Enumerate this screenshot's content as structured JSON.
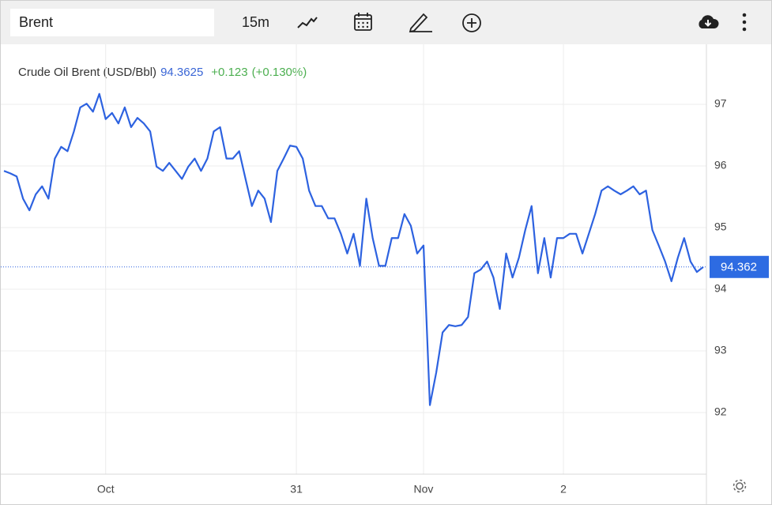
{
  "toolbar": {
    "symbol": "Brent",
    "interval": "15m"
  },
  "chart_data": {
    "type": "line",
    "title": "Crude Oil Brent (USD/Bbl)",
    "last_price": "94.3625",
    "change": "+0.123",
    "change_percent": "(+0.130%)",
    "categories": [
      null,
      null,
      null,
      null,
      null,
      null,
      null,
      null,
      null,
      null,
      null,
      null,
      null,
      null,
      null,
      null,
      "Oct",
      null,
      null,
      null,
      null,
      null,
      null,
      null,
      null,
      null,
      null,
      null,
      null,
      null,
      null,
      null,
      null,
      null,
      null,
      null,
      null,
      null,
      null,
      null,
      null,
      null,
      null,
      null,
      null,
      null,
      "31",
      null,
      null,
      null,
      null,
      null,
      null,
      null,
      null,
      null,
      null,
      null,
      null,
      null,
      null,
      null,
      null,
      null,
      null,
      null,
      "Nov",
      null,
      null,
      null,
      null,
      null,
      null,
      null,
      null,
      null,
      null,
      null,
      null,
      null,
      null,
      null,
      null,
      null,
      null,
      null,
      null,
      null,
      "2",
      null,
      null,
      null,
      null,
      null,
      null,
      null,
      null,
      null,
      null,
      null,
      null,
      null,
      null,
      null,
      null,
      null,
      null,
      null,
      null,
      null,
      null
    ],
    "series": [
      {
        "name": "Crude Oil Brent",
        "color": "#2d62e0",
        "values": [
          95.92,
          95.88,
          95.83,
          95.47,
          95.28,
          95.54,
          95.67,
          95.47,
          96.12,
          96.31,
          96.24,
          96.56,
          96.95,
          97.01,
          96.88,
          97.17,
          96.76,
          96.86,
          96.69,
          96.95,
          96.63,
          96.78,
          96.69,
          96.56,
          95.99,
          95.92,
          96.05,
          95.92,
          95.79,
          95.99,
          96.12,
          95.92,
          96.12,
          96.56,
          96.63,
          96.12,
          96.12,
          96.24,
          95.79,
          95.35,
          95.6,
          95.47,
          95.09,
          95.92,
          96.12,
          96.33,
          96.31,
          96.12,
          95.6,
          95.35,
          95.35,
          95.15,
          95.15,
          94.9,
          94.58,
          94.9,
          94.38,
          95.47,
          94.83,
          94.38,
          94.38,
          94.83,
          94.83,
          95.22,
          95.03,
          94.58,
          94.71,
          92.12,
          92.65,
          93.3,
          93.42,
          93.4,
          93.42,
          93.55,
          94.26,
          94.32,
          94.45,
          94.19,
          93.68,
          94.58,
          94.19,
          94.51,
          94.96,
          95.35,
          94.26,
          94.83,
          94.19,
          94.83,
          94.83,
          94.9,
          94.9,
          94.58,
          94.9,
          95.22,
          95.6,
          95.67,
          95.6,
          95.54,
          95.6,
          95.67,
          95.54,
          95.6,
          94.96,
          94.71,
          94.45,
          94.13,
          94.51,
          94.83,
          94.45,
          94.28,
          94.36
        ]
      }
    ],
    "price_line": 94.362,
    "ylim": [
      91,
      98
    ],
    "yticks": [
      92,
      93,
      94,
      95,
      96,
      97
    ],
    "grid": true
  }
}
